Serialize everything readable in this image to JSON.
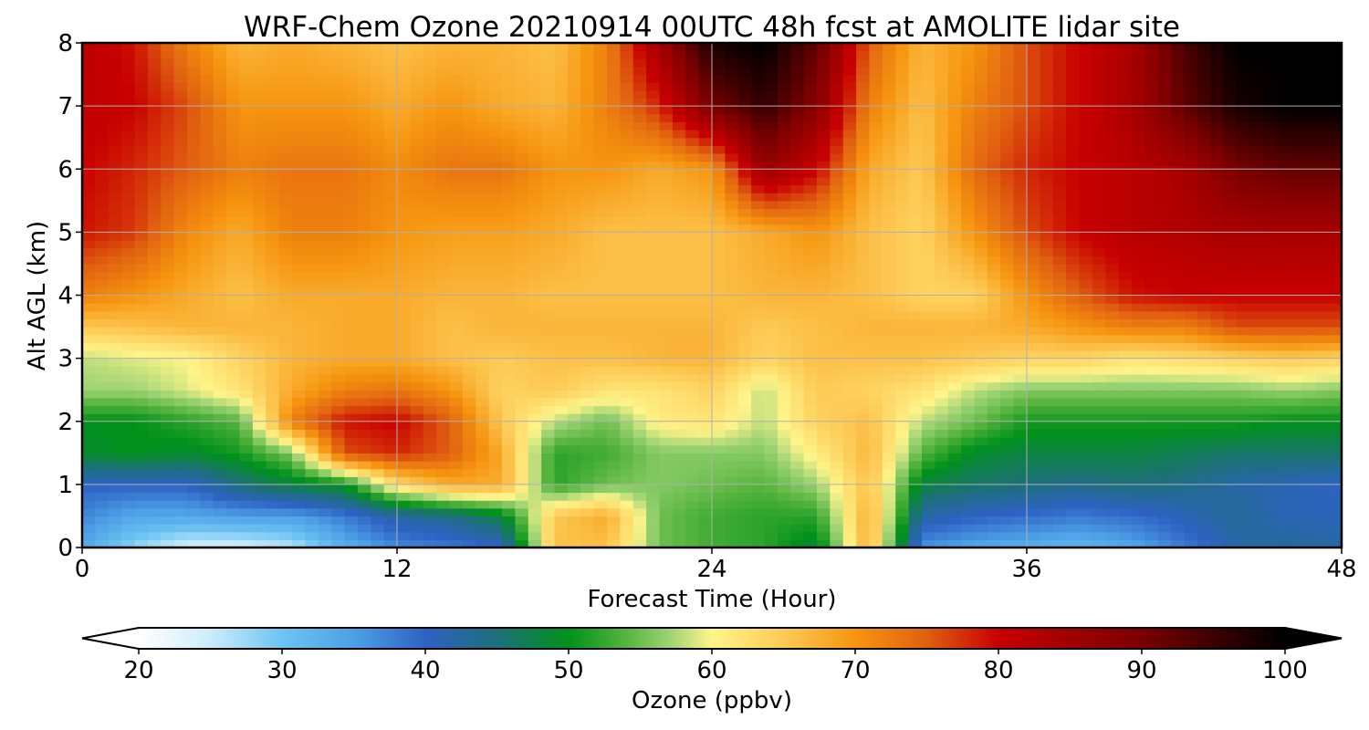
{
  "chart_data": {
    "type": "heatmap",
    "title": "WRF-Chem Ozone  20210914 00UTC 48h fcst at AMOLITE lidar site",
    "xlabel": "Forecast Time (Hour)",
    "ylabel": "Alt AGL (km)",
    "xlim": [
      0,
      48
    ],
    "ylim": [
      0,
      8
    ],
    "xticks": [
      "0",
      "12",
      "24",
      "36",
      "48"
    ],
    "yticks": [
      "0",
      "1",
      "2",
      "3",
      "4",
      "5",
      "6",
      "7",
      "8"
    ],
    "grid": true,
    "x": [
      0,
      2,
      4,
      6,
      8,
      10,
      12,
      14,
      16,
      18,
      20,
      22,
      24,
      26,
      28,
      30,
      32,
      34,
      36,
      38,
      40,
      42,
      44,
      46,
      48
    ],
    "y": [
      0,
      0.5,
      1,
      1.5,
      2,
      2.5,
      3,
      3.5,
      4,
      5,
      6,
      7,
      8
    ],
    "z": [
      [
        34,
        28,
        24,
        24,
        26,
        33,
        37,
        38,
        40,
        66,
        66,
        55,
        53,
        52,
        48,
        68,
        36,
        34,
        33,
        32,
        34,
        38,
        42,
        43,
        42
      ],
      [
        37,
        34,
        34,
        35,
        35,
        38,
        42,
        44,
        48,
        65,
        68,
        55,
        53,
        52,
        52,
        68,
        42,
        40,
        39,
        38,
        39,
        41,
        43,
        41,
        41
      ],
      [
        40,
        40,
        40,
        45,
        48,
        50,
        63,
        68,
        68,
        52,
        55,
        56,
        55,
        54,
        57,
        66,
        48,
        46,
        45,
        44,
        45,
        44,
        42,
        41,
        40
      ],
      [
        49,
        50,
        49,
        51,
        56,
        76,
        78,
        75,
        68,
        52,
        53,
        56,
        56,
        56,
        61,
        67,
        54,
        49,
        48,
        48,
        48,
        47,
        46,
        46,
        46
      ],
      [
        50,
        50,
        52,
        54,
        72,
        79,
        80,
        75,
        65,
        58,
        55,
        61,
        62,
        58,
        64,
        66,
        58,
        55,
        51,
        51,
        51,
        51,
        51,
        50,
        50
      ],
      [
        57,
        57,
        59,
        62,
        68,
        72,
        73,
        70,
        64,
        65,
        62,
        62,
        64,
        58,
        65,
        64,
        62,
        58,
        56,
        56,
        56,
        56,
        56,
        57,
        56
      ],
      [
        58,
        59,
        60,
        64,
        67,
        68,
        68,
        66,
        65,
        66,
        66,
        67,
        67,
        64,
        66,
        66,
        66,
        65,
        64,
        64,
        62,
        63,
        64,
        65,
        64
      ],
      [
        65,
        66,
        67,
        67,
        67,
        68,
        68,
        66,
        67,
        67,
        67,
        67,
        67,
        65,
        66,
        67,
        67,
        67,
        68,
        70,
        72,
        72,
        76,
        76,
        76
      ],
      [
        72,
        70,
        68,
        66,
        68,
        68,
        68,
        67,
        67,
        66,
        66,
        66,
        66,
        67,
        67,
        66,
        64,
        64,
        70,
        75,
        79,
        80,
        80,
        80,
        80
      ],
      [
        79,
        77,
        71,
        68,
        72,
        72,
        70,
        69,
        69,
        68,
        66,
        66,
        66,
        68,
        70,
        66,
        64,
        70,
        76,
        80,
        82,
        83,
        84,
        84,
        84
      ],
      [
        80,
        78,
        75,
        72,
        73,
        73,
        71,
        73,
        73,
        70,
        70,
        68,
        70,
        86,
        80,
        68,
        65,
        74,
        78,
        80,
        82,
        84,
        90,
        92,
        92
      ],
      [
        81,
        80,
        76,
        70,
        70,
        70,
        68,
        70,
        68,
        67,
        72,
        78,
        90,
        96,
        88,
        72,
        66,
        72,
        76,
        80,
        84,
        92,
        98,
        100,
        100
      ],
      [
        82,
        79,
        72,
        67,
        68,
        67,
        66,
        67,
        67,
        66,
        72,
        85,
        98,
        100,
        92,
        75,
        67,
        70,
        76,
        80,
        84,
        94,
        100,
        100,
        100
      ]
    ],
    "colorbar": {
      "label": "Ozone  (ppbv)",
      "min": 20,
      "max": 100,
      "extend": "both",
      "ticks": [
        "20",
        "30",
        "40",
        "50",
        "60",
        "70",
        "80",
        "90",
        "100"
      ],
      "colors": [
        [
          20,
          "#ffffff"
        ],
        [
          25,
          "#ccecfb"
        ],
        [
          30,
          "#6dc4f2"
        ],
        [
          35,
          "#4da0e6"
        ],
        [
          40,
          "#2e62c4"
        ],
        [
          45,
          "#1d6f7a"
        ],
        [
          50,
          "#00911a"
        ],
        [
          54,
          "#56b43e"
        ],
        [
          57,
          "#9cd374"
        ],
        [
          60,
          "#fff48a"
        ],
        [
          65,
          "#fdca55"
        ],
        [
          70,
          "#f6950f"
        ],
        [
          75,
          "#e06010"
        ],
        [
          80,
          "#c80000"
        ],
        [
          90,
          "#7a0000"
        ],
        [
          100,
          "#000000"
        ]
      ]
    }
  }
}
